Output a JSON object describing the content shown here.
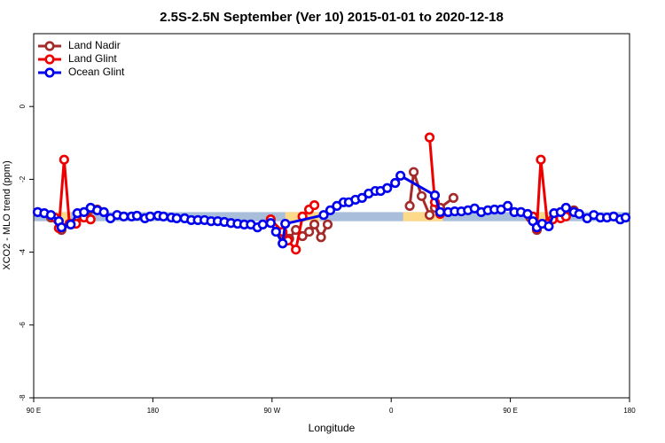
{
  "chart_data": {
    "type": "line",
    "title": "2.5S-2.5N September (Ver 10)   2015-01-01 to 2020-12-18",
    "xlabel": "Longitude",
    "ylabel": "XCO2 - MLO trend (ppm)",
    "xlim": [
      90,
      540
    ],
    "xticks": [
      {
        "value": 90,
        "label": "90 E"
      },
      {
        "value": 180,
        "label": "180"
      },
      {
        "value": 270,
        "label": "90 W"
      },
      {
        "value": 360,
        "label": "0"
      },
      {
        "value": 450,
        "label": "90 E"
      },
      {
        "value": 540,
        "label": "180"
      }
    ],
    "ylim": [
      -8,
      2
    ],
    "yticks": [
      0,
      -2,
      -4,
      -6,
      -8
    ],
    "legend": "topleft",
    "shaded_bands": [
      {
        "xlim": [
          90,
          540
        ],
        "ylim": [
          -3.15,
          -2.9
        ],
        "color": "#a8bedb"
      },
      {
        "xlim": [
          106,
          118
        ],
        "ylim": [
          -3.15,
          -2.9
        ],
        "color": "#fdd98a"
      },
      {
        "xlim": [
          280,
          306
        ],
        "ylim": [
          -3.15,
          -2.9
        ],
        "color": "#fdd98a"
      },
      {
        "xlim": [
          369,
          399
        ],
        "ylim": [
          -3.15,
          -2.9
        ],
        "color": "#fdd98a"
      },
      {
        "xlim": [
          470,
          480
        ],
        "ylim": [
          -3.15,
          -2.9
        ],
        "color": "#fdd98a"
      }
    ],
    "series": [
      {
        "name": "Land Nadir",
        "color": "#a52a2a",
        "x": [
          103,
          111,
          118,
          138,
          200,
          278,
          283,
          288,
          293,
          298,
          302,
          307,
          312,
          340,
          374,
          377,
          383,
          389,
          393,
          397,
          407,
          450,
          465,
          470,
          478,
          488,
          498
        ],
        "values": [
          -3.05,
          -3.39,
          -3.22,
          -2.83,
          null,
          -3.51,
          -3.63,
          -3.39,
          -3.56,
          -3.44,
          -3.24,
          -3.59,
          -3.24,
          null,
          -2.73,
          -1.8,
          -2.46,
          -2.98,
          -2.78,
          -2.78,
          -2.51,
          null,
          -3.05,
          -3.39,
          -3.22,
          -3.02,
          -2.85
        ]
      },
      {
        "name": "Land Glint",
        "color": "#ee0000",
        "x": [
          106,
          109,
          113,
          117,
          122,
          128,
          133,
          200,
          269,
          278,
          282,
          288,
          293,
          298,
          302,
          350,
          389,
          393,
          397,
          430,
          467,
          470,
          473,
          478,
          482,
          488,
          492
        ],
        "values": [
          -3.05,
          -3.34,
          -1.46,
          -3.22,
          -3.22,
          -3.05,
          -3.1,
          null,
          -3.1,
          -3.44,
          -3.68,
          -3.93,
          -3.02,
          -2.83,
          -2.71,
          null,
          -0.85,
          -2.63,
          -2.95,
          null,
          -3.02,
          -3.34,
          -1.46,
          -3.22,
          -3.1,
          -3.07,
          -3.02
        ]
      },
      {
        "name": "Ocean Glint",
        "color": "#0000ee",
        "x": [
          93,
          98,
          103,
          109,
          111,
          118,
          123,
          128,
          133,
          138,
          143,
          148,
          153,
          158,
          164,
          168,
          174,
          178,
          184,
          188,
          194,
          198,
          204,
          209,
          214,
          219,
          224,
          229,
          234,
          239,
          244,
          249,
          254,
          259,
          263,
          269,
          273,
          278,
          280,
          309,
          314,
          319,
          324,
          328,
          333,
          338,
          343,
          348,
          352,
          357,
          363,
          367,
          393,
          397,
          403,
          408,
          413,
          418,
          423,
          428,
          433,
          438,
          443,
          448,
          453,
          458,
          463,
          467,
          470,
          474,
          479,
          483,
          488,
          492,
          498,
          502,
          508,
          513,
          518,
          523,
          528,
          533,
          537
        ],
        "values": [
          -2.9,
          -2.93,
          -2.98,
          -3.15,
          -3.32,
          -3.24,
          -2.93,
          -2.9,
          -2.78,
          -2.85,
          -2.9,
          -3.07,
          -2.98,
          -3.02,
          -3.02,
          -3.0,
          -3.07,
          -3.02,
          -3.0,
          -3.02,
          -3.05,
          -3.07,
          -3.07,
          -3.12,
          -3.12,
          -3.12,
          -3.15,
          -3.15,
          -3.17,
          -3.2,
          -3.22,
          -3.24,
          -3.24,
          -3.32,
          -3.24,
          -3.2,
          -3.44,
          -3.76,
          -3.22,
          -2.98,
          -2.85,
          -2.73,
          -2.63,
          -2.63,
          -2.56,
          -2.51,
          -2.39,
          -2.32,
          -2.32,
          -2.24,
          -2.1,
          -1.9,
          -2.44,
          -2.9,
          -2.9,
          -2.88,
          -2.88,
          -2.85,
          -2.8,
          -2.9,
          -2.85,
          -2.83,
          -2.83,
          -2.73,
          -2.9,
          -2.9,
          -2.95,
          -3.15,
          -3.32,
          -3.22,
          -3.29,
          -2.93,
          -2.9,
          -2.78,
          -2.9,
          -2.95,
          -3.07,
          -2.98,
          -3.05,
          -3.05,
          -3.02,
          -3.1,
          -3.05
        ]
      }
    ]
  }
}
